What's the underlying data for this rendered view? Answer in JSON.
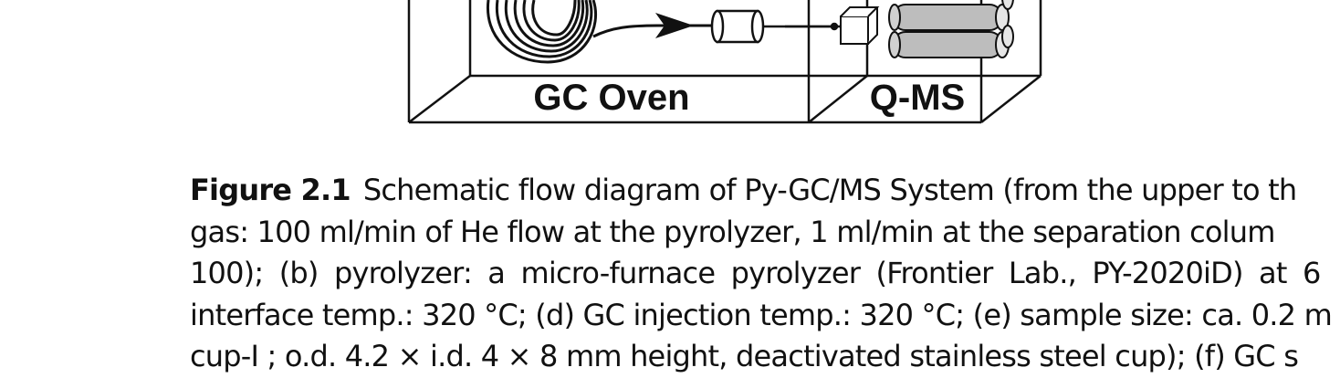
{
  "diagram": {
    "oven_label": "GC Oven",
    "ms_label": "Q-MS"
  },
  "caption": {
    "figure_label": "Figure 2.1",
    "lines": [
      "Schematic flow diagram of Py-GC/MS System (from the upper to th",
      "gas: 100 ml/min of He flow at the pyrolyzer, 1 ml/min at the separation colum",
      "100); (b) pyrolyzer: a micro-furnace pyrolyzer (Frontier Lab., PY-2020iD) at 6",
      "interface temp.: 320 °C; (d) GC injection temp.: 320 °C; (e) sample size: ca. 0.2 m",
      "cup-I ; o.d. 4.2 × i.d. 4 × 8 mm height, deactivated stainless steel cup); (f) GC s"
    ]
  }
}
